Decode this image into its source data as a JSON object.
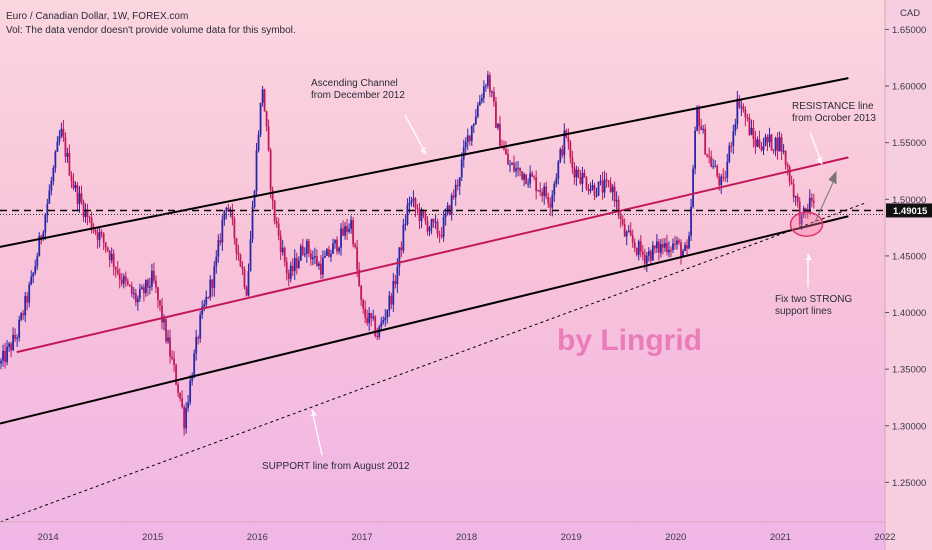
{
  "header": {
    "title": "Euro / Canadian Dollar, 1W, FOREX.com",
    "volume_note": "Vol: The data vendor doesn't provide volume data for this symbol."
  },
  "chart_data": {
    "type": "candlestick",
    "title": "Euro / Canadian Dollar, 1W, FOREX.com",
    "currency_label": "CAD",
    "x_ticks": [
      "2014",
      "2015",
      "2016",
      "2017",
      "2018",
      "2019",
      "2020",
      "2021",
      "2022"
    ],
    "x_range": [
      2013.54,
      2022.0
    ],
    "y_ticks": [
      "1.65000",
      "1.60000",
      "1.55000",
      "1.50000",
      "1.45000",
      "1.40000",
      "1.35000",
      "1.30000",
      "1.25000"
    ],
    "y_range": [
      1.215,
      1.676
    ],
    "current_price": "1.49015",
    "current_price_value": 1.49015,
    "price_path": [
      [
        2013.55,
        1.355
      ],
      [
        2013.7,
        1.38
      ],
      [
        2013.85,
        1.43
      ],
      [
        2014.0,
        1.5
      ],
      [
        2014.12,
        1.56
      ],
      [
        2014.25,
        1.51
      ],
      [
        2014.4,
        1.48
      ],
      [
        2014.55,
        1.46
      ],
      [
        2014.7,
        1.43
      ],
      [
        2014.85,
        1.41
      ],
      [
        2015.0,
        1.43
      ],
      [
        2015.1,
        1.39
      ],
      [
        2015.25,
        1.33
      ],
      [
        2015.3,
        1.305
      ],
      [
        2015.45,
        1.39
      ],
      [
        2015.6,
        1.44
      ],
      [
        2015.7,
        1.5
      ],
      [
        2015.8,
        1.46
      ],
      [
        2015.9,
        1.42
      ],
      [
        2016.0,
        1.55
      ],
      [
        2016.05,
        1.6
      ],
      [
        2016.15,
        1.49
      ],
      [
        2016.3,
        1.43
      ],
      [
        2016.45,
        1.46
      ],
      [
        2016.6,
        1.44
      ],
      [
        2016.75,
        1.46
      ],
      [
        2016.9,
        1.48
      ],
      [
        2017.0,
        1.4
      ],
      [
        2017.1,
        1.39
      ],
      [
        2017.15,
        1.38
      ],
      [
        2017.3,
        1.42
      ],
      [
        2017.45,
        1.5
      ],
      [
        2017.6,
        1.48
      ],
      [
        2017.75,
        1.47
      ],
      [
        2017.9,
        1.51
      ],
      [
        2018.0,
        1.55
      ],
      [
        2018.2,
        1.61
      ],
      [
        2018.3,
        1.56
      ],
      [
        2018.4,
        1.53
      ],
      [
        2018.6,
        1.52
      ],
      [
        2018.8,
        1.5
      ],
      [
        2018.95,
        1.56
      ],
      [
        2019.0,
        1.53
      ],
      [
        2019.2,
        1.51
      ],
      [
        2019.4,
        1.51
      ],
      [
        2019.5,
        1.47
      ],
      [
        2019.7,
        1.45
      ],
      [
        2019.9,
        1.46
      ],
      [
        2020.0,
        1.46
      ],
      [
        2020.12,
        1.45
      ],
      [
        2020.2,
        1.58
      ],
      [
        2020.3,
        1.54
      ],
      [
        2020.45,
        1.51
      ],
      [
        2020.6,
        1.59
      ],
      [
        2020.75,
        1.55
      ],
      [
        2020.9,
        1.55
      ],
      [
        2021.0,
        1.55
      ],
      [
        2021.12,
        1.51
      ],
      [
        2021.2,
        1.48
      ],
      [
        2021.3,
        1.5
      ]
    ],
    "trendlines": [
      {
        "name": "channel-upper",
        "color": "#000000",
        "style": "solid",
        "points": [
          [
            2013.54,
            1.458
          ],
          [
            2021.65,
            1.607
          ]
        ]
      },
      {
        "name": "channel-lower",
        "color": "#000000",
        "style": "solid",
        "points": [
          [
            2013.54,
            1.302
          ],
          [
            2021.65,
            1.485
          ]
        ]
      },
      {
        "name": "resistance-line",
        "color": "#c2185b",
        "style": "solid",
        "points": [
          [
            2013.7,
            1.365
          ],
          [
            2021.65,
            1.537
          ]
        ]
      },
      {
        "name": "support-line",
        "color": "#000000",
        "style": "dashed",
        "points": [
          [
            2013.54,
            1.215
          ],
          [
            2021.82,
            1.497
          ]
        ]
      }
    ],
    "annotations": [
      {
        "name": "ascending-channel",
        "lines": [
          "Ascending Channel",
          "from December 2012"
        ]
      },
      {
        "name": "resistance",
        "lines": [
          "RESISTANCE line",
          "from Ocrober 2013"
        ]
      },
      {
        "name": "fix-support",
        "lines": [
          "Fix two STRONG",
          "support lines"
        ]
      },
      {
        "name": "support-line",
        "lines": [
          "SUPPORT line from August 2012"
        ]
      }
    ],
    "watermark": "by Lingrid",
    "colors": {
      "up": "#2a27a6",
      "down": "#c2185b",
      "price_line": "#000000"
    }
  }
}
